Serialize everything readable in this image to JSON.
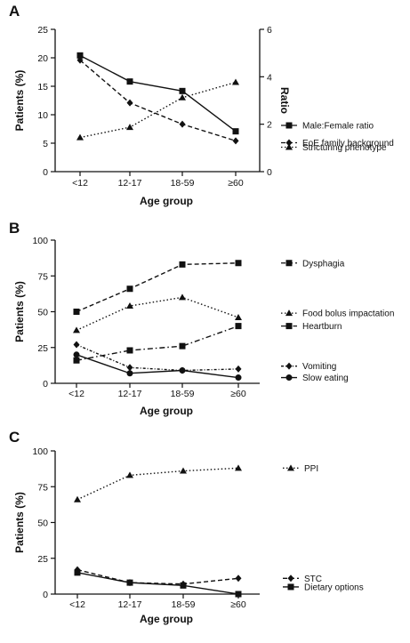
{
  "chart_data": [
    {
      "panel": "A",
      "type": "line",
      "categories": [
        "<12",
        "12-17",
        "18-59",
        "≥60"
      ],
      "xlabel": "Age group",
      "ylabel": "Patients (%)",
      "y2label": "Ratio",
      "ylim": [
        0,
        25
      ],
      "yticks": [
        0,
        5,
        10,
        15,
        20,
        25
      ],
      "y2lim": [
        0,
        6
      ],
      "y2ticks": [
        0,
        2,
        4,
        6
      ],
      "series": [
        {
          "name": "Stricturing phenotype",
          "axis": "left",
          "values": [
            6.0,
            7.8,
            13.0,
            15.7
          ],
          "marker": "triangle",
          "dash": "dotted",
          "legend_value": 4.3
        },
        {
          "name": "Male:Female ratio",
          "axis": "right",
          "values": [
            4.9,
            3.8,
            3.4,
            1.7
          ],
          "marker": "square",
          "dash": "solid",
          "legend_value": 1.95
        },
        {
          "name": "EoE family background",
          "axis": "right",
          "values": [
            4.7,
            2.9,
            2.0,
            1.3
          ],
          "marker": "diamond",
          "dash": "dashed",
          "legend_value": 1.22
        }
      ]
    },
    {
      "panel": "B",
      "type": "line",
      "categories": [
        "<12",
        "12-17",
        "18-59",
        "≥60"
      ],
      "xlabel": "Age group",
      "ylabel": "Patients (%)",
      "ylim": [
        0,
        100
      ],
      "yticks": [
        0,
        25,
        50,
        75,
        100
      ],
      "series": [
        {
          "name": "Dysphagia",
          "values": [
            50,
            66,
            83,
            84
          ],
          "marker": "square",
          "dash": "dashed",
          "legend_value": 84
        },
        {
          "name": "Food bolus impactation",
          "values": [
            37,
            54,
            60,
            46
          ],
          "marker": "triangle",
          "dash": "dotted",
          "legend_value": 49
        },
        {
          "name": "Heartburn",
          "values": [
            16,
            23,
            26,
            40
          ],
          "marker": "square",
          "dash": "dashdot",
          "legend_value": 40
        },
        {
          "name": "Vomiting",
          "values": [
            27,
            11,
            9,
            10
          ],
          "marker": "diamond",
          "dash": "dashdot2",
          "legend_value": 12
        },
        {
          "name": "Slow eating",
          "values": [
            20,
            7,
            9,
            4
          ],
          "marker": "circle",
          "dash": "solid",
          "legend_value": 4
        }
      ]
    },
    {
      "panel": "C",
      "type": "line",
      "categories": [
        "<12",
        "12-17",
        "18-59",
        "≥60"
      ],
      "xlabel": "Age group",
      "ylabel": "Patients (%)",
      "ylim": [
        0,
        100
      ],
      "yticks": [
        0,
        25,
        50,
        75,
        100
      ],
      "series": [
        {
          "name": "PPI",
          "values": [
            66,
            83,
            86,
            88
          ],
          "marker": "triangle",
          "dash": "dotted",
          "legend_value": 88
        },
        {
          "name": "STC",
          "values": [
            17,
            8,
            7,
            11
          ],
          "marker": "diamond",
          "dash": "dashed",
          "legend_value": 11
        },
        {
          "name": "Dietary options",
          "values": [
            15,
            8,
            6,
            0
          ],
          "marker": "square",
          "dash": "solid",
          "legend_value": 5
        }
      ]
    }
  ]
}
